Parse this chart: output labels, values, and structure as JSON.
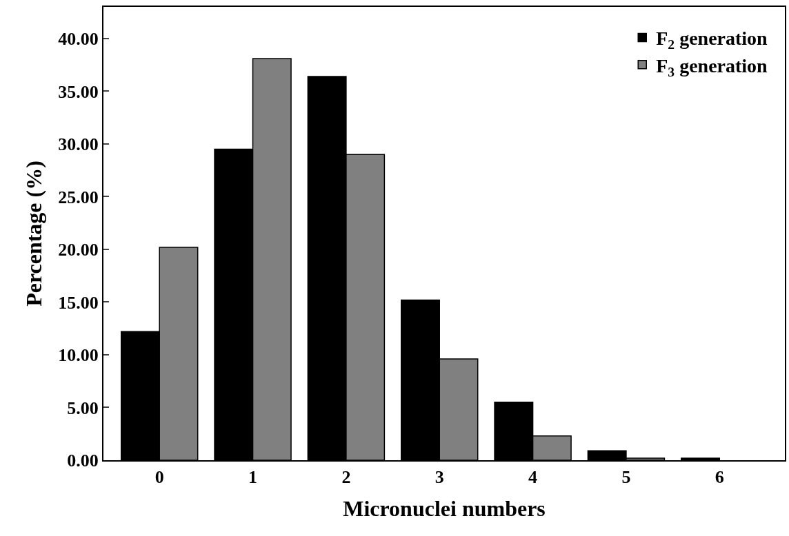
{
  "chart_data": {
    "type": "bar",
    "xlabel": "Micronuclei numbers",
    "ylabel": "Percentage (%)",
    "categories": [
      "0",
      "1",
      "2",
      "3",
      "4",
      "5",
      "6"
    ],
    "series": [
      {
        "name": "F$_{2}$ generation",
        "color": "#000000",
        "values": [
          12.2,
          29.5,
          36.4,
          15.2,
          5.5,
          0.9,
          0.2
        ]
      },
      {
        "name": "F$_{3}$ generation",
        "color": "#808080",
        "values": [
          20.2,
          38.1,
          29.0,
          9.6,
          2.3,
          0.2,
          null
        ]
      }
    ],
    "ylim": [
      0,
      43
    ],
    "yticks": [
      {
        "value": 0,
        "label": "0.00"
      },
      {
        "value": 5,
        "label": "5.00"
      },
      {
        "value": 10,
        "label": "10.00"
      },
      {
        "value": 15,
        "label": "15.00"
      },
      {
        "value": 20,
        "label": "20.00"
      },
      {
        "value": 25,
        "label": "25.00"
      },
      {
        "value": 30,
        "label": "30.00"
      },
      {
        "value": 35,
        "label": "35.00"
      },
      {
        "value": 40,
        "label": "40.00"
      }
    ],
    "grid": false,
    "legend": "top right"
  }
}
